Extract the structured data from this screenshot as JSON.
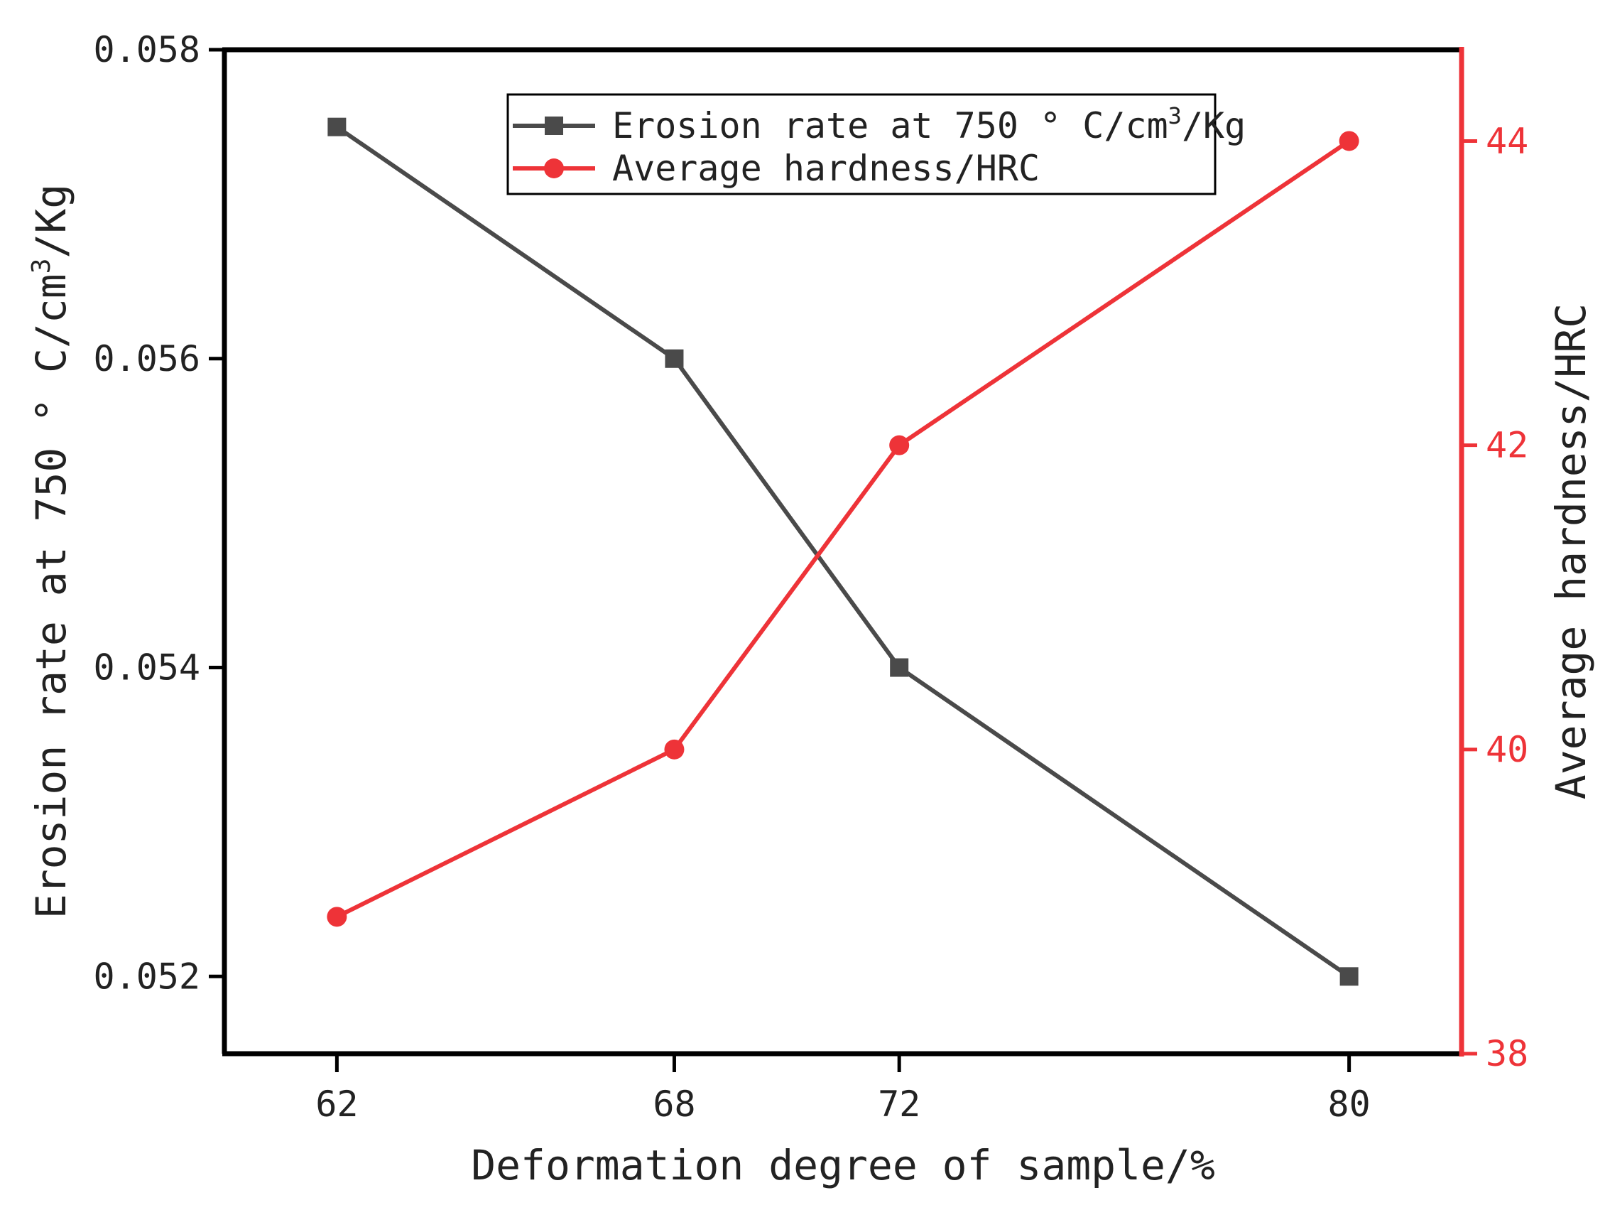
{
  "chart_data": {
    "type": "line",
    "title": "",
    "x": [
      62,
      68,
      72,
      80
    ],
    "xlabel": "Deformation degree of sample/%",
    "xlim": [
      60,
      82
    ],
    "xticks": [
      "62",
      "68",
      "72",
      "80"
    ],
    "ylabel_left_main": "Erosion rate at 750 ° C/cm",
    "ylabel_left_sup": "3",
    "ylabel_left_tail": "/Kg",
    "ylim_left": [
      0.0515,
      0.058
    ],
    "yticks_left": [
      "0.052",
      "0.054",
      "0.056",
      "0.058"
    ],
    "yticks_left_values": [
      0.052,
      0.054,
      0.056,
      0.058
    ],
    "ylabel_right": "Average hardness/HRC",
    "ylim_right": [
      38,
      44.6
    ],
    "yticks_right": [
      "38",
      "40",
      "42",
      "44"
    ],
    "yticks_right_values": [
      38,
      40,
      42,
      44
    ],
    "series": [
      {
        "name": "Erosion rate at 750 ° C/cm³/Kg",
        "legend_main": "Erosion rate at 750 ° C/cm",
        "legend_sup": "3",
        "legend_tail": "/Kg",
        "axis": "left",
        "marker": "square",
        "color": "#4a4a4a",
        "values": [
          0.0575,
          0.056,
          0.054,
          0.052
        ]
      },
      {
        "name": "Average hardness/HRC",
        "legend_main": "Average hardness/HRC",
        "axis": "right",
        "marker": "circle",
        "color": "#ee3338",
        "values": [
          38.9,
          40.0,
          42.0,
          44.0
        ]
      }
    ],
    "legend_position": "top-center",
    "grid": false
  }
}
